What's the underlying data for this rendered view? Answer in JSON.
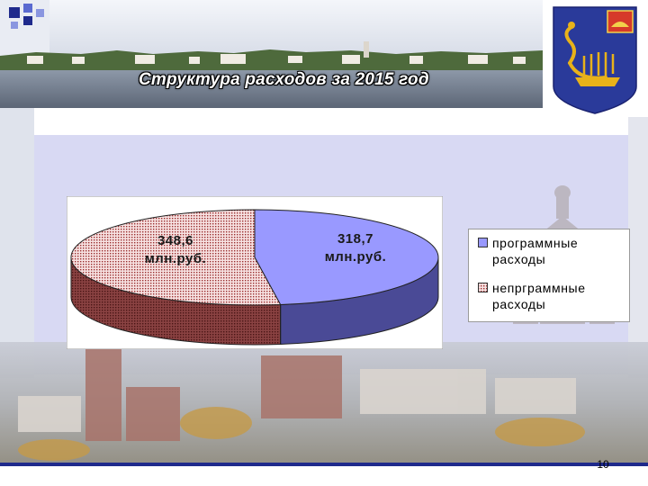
{
  "title": "Структура расходов за 2015 год",
  "page_number": "10",
  "colors": {
    "accent_blue": "#1f2a8c",
    "slice_program": "#9999ff",
    "slice_program_side": "#4a4a96",
    "slice_nonprogram": "#f2cccc",
    "slice_nonprogram_side": "#7a3838"
  },
  "icons": {
    "coat_of_arms": "heraldic-shield-with-golden-bird-boat",
    "corner": "blue-squares-decoration"
  },
  "chart_data": {
    "type": "pie",
    "title": "",
    "style": "3d",
    "legend_placement": "right",
    "series": [
      {
        "name": "",
        "categories": [
          "программные расходы",
          "непрграммные расходы"
        ],
        "values": [
          318.7,
          348.6
        ],
        "labels": [
          "318,7 млн.руб.",
          "348,6 млн.руб."
        ]
      }
    ]
  },
  "legend": [
    {
      "line1": "программные",
      "line2": "расходы"
    },
    {
      "line1": "непрграммные",
      "line2": "расходы"
    }
  ],
  "labels": {
    "program_value": "318,7",
    "program_unit": "млн.руб.",
    "nonprogram_value": "348,6",
    "nonprogram_unit": "млн.руб."
  }
}
